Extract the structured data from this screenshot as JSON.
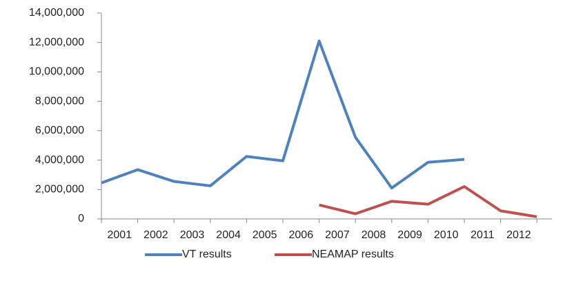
{
  "chart_data": {
    "type": "line",
    "categories": [
      "2001",
      "2002",
      "2003",
      "2004",
      "2005",
      "2006",
      "2007",
      "2008",
      "2009",
      "2010",
      "2011",
      "2012",
      null
    ],
    "series": [
      {
        "name": "VT results",
        "color": "#4f81bd",
        "values": [
          2450000,
          3350000,
          2550000,
          2250000,
          4250000,
          3950000,
          12100000,
          5550000,
          2100000,
          3850000,
          4050000,
          null,
          null
        ]
      },
      {
        "name": "NEAMAP results",
        "color": "#c0504d",
        "values": [
          null,
          null,
          null,
          null,
          null,
          null,
          950000,
          350000,
          1200000,
          1000000,
          2200000,
          550000,
          150000
        ]
      }
    ],
    "ylim": [
      0,
      14000000
    ],
    "yticks": [
      0,
      {
        "value": 2000000,
        "label": "2,000,000"
      },
      {
        "value": 4000000,
        "label": "4,000,000"
      },
      {
        "value": 6000000,
        "label": "6,000,000"
      },
      {
        "value": 8000000,
        "label": "8,000,000"
      },
      {
        "value": 10000000,
        "label": "10,000,000"
      },
      {
        "value": 12000000,
        "label": "12,000,000"
      },
      {
        "value": 14000000,
        "label": "14,000,000"
      }
    ],
    "legend": "bottom"
  }
}
